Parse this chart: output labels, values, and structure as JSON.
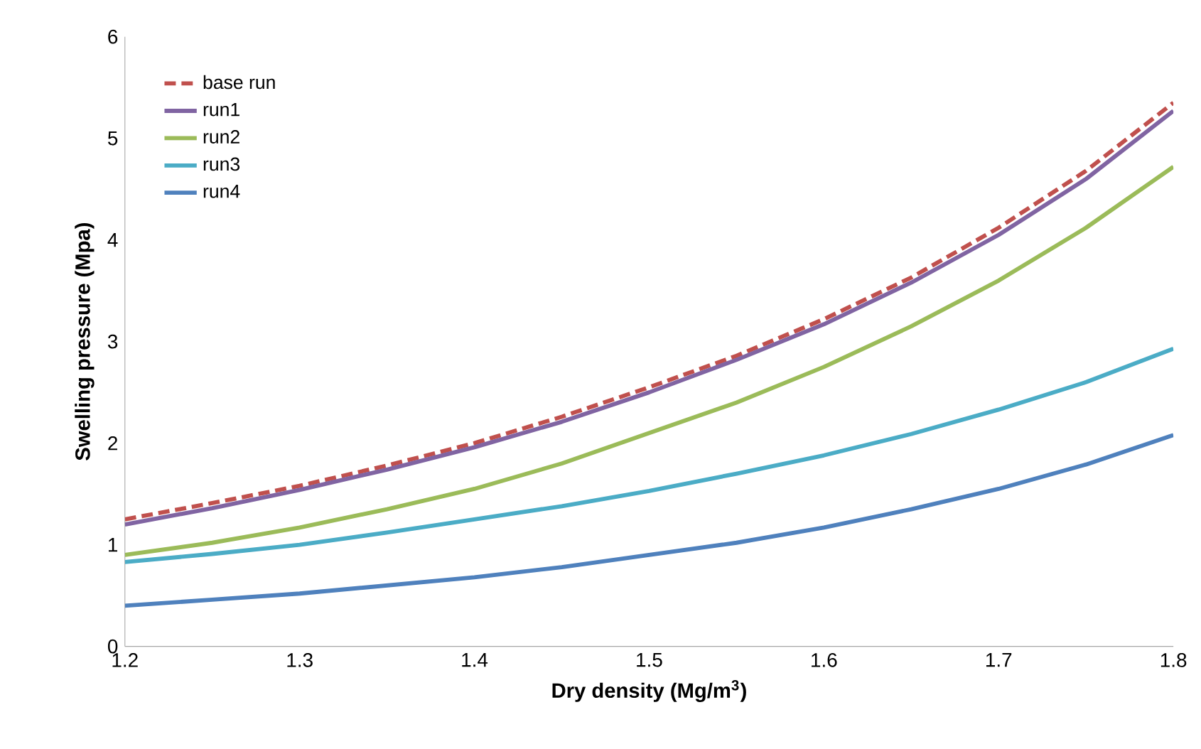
{
  "chart_data": {
    "type": "line",
    "xlabel": "Dry density (Mg/m$^{3}$)",
    "ylabel": "Swelling pressure (Mpa)",
    "x": [
      1.2,
      1.25,
      1.3,
      1.35,
      1.4,
      1.45,
      1.5,
      1.55,
      1.6,
      1.65,
      1.7,
      1.75,
      1.8
    ],
    "xlim": [
      1.2,
      1.8
    ],
    "xticks": [
      1.2,
      1.3,
      1.4,
      1.5,
      1.6,
      1.7,
      1.8
    ],
    "ylim": [
      0,
      6
    ],
    "yticks": [
      0,
      1,
      2,
      3,
      4,
      5,
      6
    ],
    "grid": false,
    "legend": "top left",
    "marker": "none",
    "series": [
      {
        "name": "base run",
        "color": "#c0504d",
        "line_style": "dashed",
        "values": [
          1.25,
          1.41,
          1.58,
          1.78,
          2.0,
          2.26,
          2.55,
          2.86,
          3.22,
          3.63,
          4.12,
          4.68,
          5.35
        ]
      },
      {
        "name": "run1",
        "color": "#8064a2",
        "line_style": "solid",
        "values": [
          1.2,
          1.36,
          1.54,
          1.74,
          1.96,
          2.21,
          2.5,
          2.82,
          3.17,
          3.58,
          4.05,
          4.6,
          5.27
        ]
      },
      {
        "name": "run2",
        "color": "#9bbb59",
        "line_style": "solid",
        "values": [
          0.9,
          1.02,
          1.17,
          1.35,
          1.55,
          1.8,
          2.1,
          2.4,
          2.75,
          3.15,
          3.6,
          4.12,
          4.72
        ]
      },
      {
        "name": "run3",
        "color": "#4bacc6",
        "line_style": "solid",
        "values": [
          0.83,
          0.91,
          1.0,
          1.12,
          1.25,
          1.38,
          1.53,
          1.7,
          1.88,
          2.09,
          2.33,
          2.6,
          2.93
        ]
      },
      {
        "name": "run4",
        "color": "#4f81bd",
        "line_style": "solid",
        "values": [
          0.4,
          0.46,
          0.52,
          0.6,
          0.68,
          0.78,
          0.9,
          1.02,
          1.17,
          1.35,
          1.55,
          1.79,
          2.08
        ]
      }
    ]
  }
}
